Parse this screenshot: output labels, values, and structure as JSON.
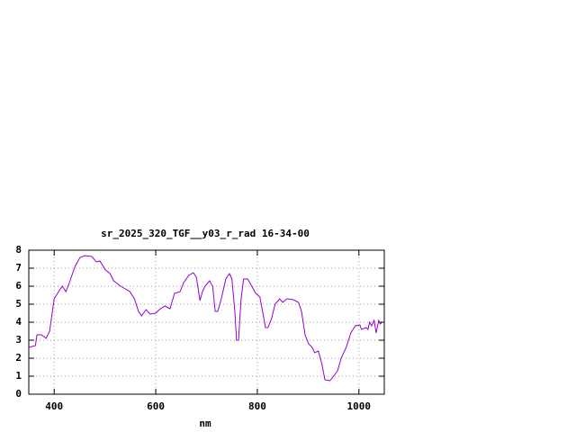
{
  "chart_data": {
    "type": "line",
    "title": "sr_2025_320_TGF__y03_r_rad 16-34-00",
    "x_label": "nm",
    "x": [
      350,
      363,
      366,
      375,
      384,
      391,
      400,
      411,
      416,
      423,
      430,
      441,
      451,
      460,
      474,
      483,
      490,
      501,
      510,
      517,
      531,
      549,
      558,
      566,
      572,
      581,
      589,
      600,
      607,
      618,
      628,
      637,
      648,
      655,
      665,
      674,
      680,
      687,
      692,
      697,
      706,
      712,
      717,
      722,
      729,
      738,
      745,
      750,
      756,
      759,
      763,
      768,
      773,
      781,
      789,
      797,
      805,
      811,
      816,
      821,
      828,
      835,
      844,
      850,
      858,
      871,
      881,
      887,
      894,
      901,
      908,
      913,
      920,
      927,
      933,
      943,
      950,
      958,
      965,
      975,
      984,
      993,
      1002,
      1005,
      1014,
      1018,
      1021,
      1025,
      1030,
      1034,
      1039,
      1042,
      1046
    ],
    "series": [
      {
        "color": "#9400d3",
        "values": [
          2.6,
          2.7,
          3.3,
          3.3,
          3.1,
          3.5,
          5.3,
          5.8,
          6.0,
          5.7,
          6.2,
          7.1,
          7.6,
          7.7,
          7.65,
          7.35,
          7.4,
          6.9,
          6.7,
          6.3,
          6.0,
          5.7,
          5.3,
          4.6,
          4.35,
          4.7,
          4.45,
          4.5,
          4.7,
          4.9,
          4.75,
          5.6,
          5.7,
          6.2,
          6.6,
          6.75,
          6.5,
          5.2,
          5.7,
          6.0,
          6.3,
          6.0,
          4.6,
          4.6,
          5.3,
          6.4,
          6.7,
          6.4,
          4.5,
          3.0,
          3.0,
          5.3,
          6.4,
          6.4,
          6.0,
          5.6,
          5.4,
          4.5,
          3.7,
          3.7,
          4.2,
          5.0,
          5.3,
          5.1,
          5.3,
          5.25,
          5.1,
          4.6,
          3.3,
          2.8,
          2.6,
          2.3,
          2.4,
          1.7,
          0.8,
          0.75,
          1.0,
          1.3,
          2.0,
          2.6,
          3.4,
          3.8,
          3.85,
          3.6,
          3.7,
          3.6,
          4.0,
          3.8,
          4.1,
          3.4,
          4.1,
          3.9,
          4.0
        ]
      }
    ],
    "xlim": [
      350,
      1050
    ],
    "xticks": [
      400,
      600,
      800,
      1000
    ],
    "ylim": [
      0,
      8
    ],
    "yticks": [
      0,
      1,
      2,
      3,
      4,
      5,
      6,
      7,
      8
    ],
    "grid": true
  }
}
